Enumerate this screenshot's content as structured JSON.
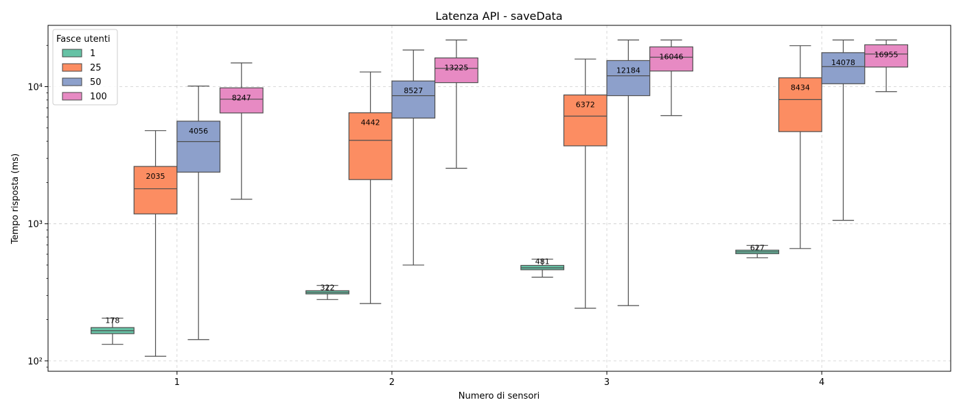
{
  "chart_data": {
    "type": "box",
    "title": "Latenza API - saveData",
    "xlabel": "Numero di sensori",
    "ylabel": "Tempo risposta (ms)",
    "yscale": "log",
    "ylim": [
      84,
      28000
    ],
    "ytick_values": [
      100,
      1000,
      10000
    ],
    "ytick_labels": [
      "10²",
      "10³",
      "10⁴"
    ],
    "grid": true,
    "categories": [
      "1",
      "2",
      "3",
      "4"
    ],
    "legend": {
      "title": "Fasce utenti",
      "position": "top-left"
    },
    "series": [
      {
        "name": "1",
        "color": "#66c2a5",
        "boxes": [
          {
            "whislo": 132,
            "q1": 158,
            "med": 166,
            "q3": 175,
            "whishi": 205,
            "label": "178"
          },
          {
            "whislo": 280,
            "q1": 308,
            "med": 316,
            "q3": 325,
            "whishi": 355,
            "label": "322"
          },
          {
            "whislo": 408,
            "q1": 462,
            "med": 477,
            "q3": 497,
            "whishi": 552,
            "label": "481"
          },
          {
            "whislo": 565,
            "q1": 605,
            "med": 624,
            "q3": 642,
            "whishi": 695,
            "label": "627"
          }
        ]
      },
      {
        "name": "25",
        "color": "#fc8d62",
        "boxes": [
          {
            "whislo": 108,
            "q1": 1180,
            "med": 1800,
            "q3": 2620,
            "whishi": 4780,
            "label": "2035"
          },
          {
            "whislo": 262,
            "q1": 2100,
            "med": 4060,
            "q3": 6450,
            "whishi": 12800,
            "label": "4442"
          },
          {
            "whislo": 242,
            "q1": 3700,
            "med": 6100,
            "q3": 8700,
            "whishi": 15900,
            "label": "6372"
          },
          {
            "whislo": 660,
            "q1": 4700,
            "med": 8050,
            "q3": 11600,
            "whishi": 19900,
            "label": "8434"
          }
        ]
      },
      {
        "name": "50",
        "color": "#8da0cb",
        "boxes": [
          {
            "whislo": 143,
            "q1": 2380,
            "med": 3980,
            "q3": 5600,
            "whishi": 10100,
            "label": "4056"
          },
          {
            "whislo": 500,
            "q1": 5900,
            "med": 8600,
            "q3": 11000,
            "whishi": 18500,
            "label": "8527"
          },
          {
            "whislo": 253,
            "q1": 8600,
            "med": 12000,
            "q3": 15500,
            "whishi": 21900,
            "label": "12184"
          },
          {
            "whislo": 1060,
            "q1": 10500,
            "med": 14000,
            "q3": 17700,
            "whishi": 21900,
            "label": "14078"
          }
        ]
      },
      {
        "name": "100",
        "color": "#e78ac3",
        "boxes": [
          {
            "whislo": 1510,
            "q1": 6430,
            "med": 8100,
            "q3": 9800,
            "whishi": 14900,
            "label": "8247"
          },
          {
            "whislo": 2540,
            "q1": 10700,
            "med": 13600,
            "q3": 16200,
            "whishi": 21900,
            "label": "13225"
          },
          {
            "whislo": 6150,
            "q1": 13000,
            "med": 16400,
            "q3": 19500,
            "whishi": 21900,
            "label": "16046"
          },
          {
            "whislo": 9200,
            "q1": 13900,
            "med": 17300,
            "q3": 20200,
            "whishi": 21900,
            "label": "16955"
          }
        ]
      }
    ]
  }
}
